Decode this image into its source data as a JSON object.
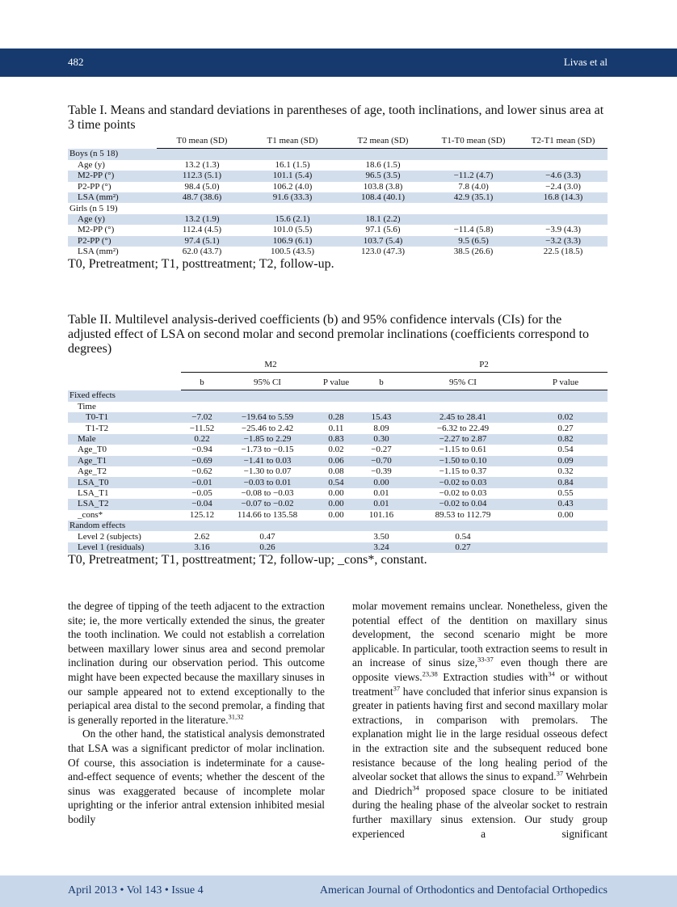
{
  "header": {
    "page": "482",
    "running_title": "Livas et al"
  },
  "table1": {
    "label": "Table I.",
    "caption": "Means and standard deviations in parentheses of age, tooth inclinations, and lower sinus area at 3 time points",
    "columns": [
      "T0 mean (SD)",
      "T1 mean (SD)",
      "T2 mean (SD)",
      "T1-T0 mean (SD)",
      "T2-T1 mean (SD)"
    ],
    "rows": [
      {
        "label": "Boys (n 5 18)",
        "rows": [
          {
            "label": "Age (y)",
            "cells": [
              "13.2 (1.3)",
              "16.1 (1.5)",
              "18.6 (1.5)",
              null,
              null
            ]
          },
          {
            "label": "M2-PP (°)",
            "cells": [
              "112.3 (5.1)",
              "101.1 (5.4)",
              "96.5 (3.5)",
              "−11.2 (4.7)",
              "−4.6 (3.3)"
            ]
          },
          {
            "label": "P2-PP (°)",
            "cells": [
              "98.4 (5.0)",
              "106.2 (4.0)",
              "103.8 (3.8)",
              "7.8 (4.0)",
              "−2.4 (3.0)"
            ]
          },
          {
            "label": "LSA (mm²)",
            "cells": [
              "48.7 (38.6)",
              "91.6 (33.3)",
              "108.4 (40.1)",
              "42.9 (35.1)",
              "16.8 (14.3)"
            ]
          }
        ]
      },
      {
        "label": "Girls (n 5 19)",
        "rows": [
          {
            "label": "Age (y)",
            "cells": [
              "13.2 (1.9)",
              "15.6 (2.1)",
              "18.1 (2.2)",
              null,
              null
            ]
          },
          {
            "label": "M2-PP (°)",
            "cells": [
              "112.4 (4.5)",
              "101.0 (5.5)",
              "97.1 (5.6)",
              "−11.4 (5.8)",
              "−3.9 (4.3)"
            ]
          },
          {
            "label": "P2-PP (°)",
            "cells": [
              "97.4 (5.1)",
              "106.9 (6.1)",
              "103.7 (5.4)",
              "9.5 (6.5)",
              "−3.2 (3.3)"
            ]
          },
          {
            "label": "LSA (mm²)",
            "cells": [
              "62.0 (43.7)",
              "100.5 (43.5)",
              "123.0 (47.3)",
              "38.5 (26.6)",
              "22.5 (18.5)"
            ]
          }
        ]
      }
    ],
    "footnote": "T0, Pretreatment; T1, posttreatment; T2, follow-up."
  },
  "table2": {
    "label": "Table II.",
    "caption": "Multilevel analysis-derived coefficients (b) and 95% confidence intervals (CIs) for the adjusted effect of LSA on second molar and second premolar inclinations (coefficients correspond to degrees)",
    "groups": [
      "M2",
      "P2"
    ],
    "columns": [
      "b",
      "95% CI",
      "P value",
      "b",
      "95% CI",
      "P value"
    ],
    "rows": [
      {
        "label": "Fixed effects",
        "rows": [
          {
            "label": "Time",
            "rows": [
              {
                "label": "T0-T1",
                "cells": [
                  "−7.02",
                  "−19.64 to 5.59",
                  "0.28",
                  "15.43",
                  "2.45 to 28.41",
                  "0.02"
                ]
              },
              {
                "label": "T1-T2",
                "cells": [
                  "−11.52",
                  "−25.46 to 2.42",
                  "0.11",
                  "8.09",
                  "−6.32 to 22.49",
                  "0.27"
                ]
              }
            ]
          },
          {
            "label": "Male",
            "cells": [
              "0.22",
              "−1.85 to 2.29",
              "0.83",
              "0.30",
              "−2.27 to 2.87",
              "0.82"
            ]
          },
          {
            "label": "Age_T0",
            "cells": [
              "−0.94",
              "−1.73 to −0.15",
              "0.02",
              "−0.27",
              "−1.15 to 0.61",
              "0.54"
            ]
          },
          {
            "label": "Age_T1",
            "cells": [
              "−0.69",
              "−1.41 to 0.03",
              "0.06",
              "−0.70",
              "−1.50 to 0.10",
              "0.09"
            ]
          },
          {
            "label": "Age_T2",
            "cells": [
              "−0.62",
              "−1.30 to 0.07",
              "0.08",
              "−0.39",
              "−1.15 to 0.37",
              "0.32"
            ]
          },
          {
            "label": "LSA_T0",
            "cells": [
              "−0.01",
              "−0.03 to 0.01",
              "0.54",
              "0.00",
              "−0.02 to 0.03",
              "0.84"
            ]
          },
          {
            "label": "LSA_T1",
            "cells": [
              "−0.05",
              "−0.08 to −0.03",
              "0.00",
              "0.01",
              "−0.02 to 0.03",
              "0.55"
            ]
          },
          {
            "label": "LSA_T2",
            "cells": [
              "−0.04",
              "−0.07 to −0.02",
              "0.00",
              "0.01",
              "−0.02 to 0.04",
              "0.43"
            ]
          },
          {
            "label": "_cons*",
            "cells": [
              "125.12",
              "114.66 to 135.58",
              "0.00",
              "101.16",
              "89.53 to 112.79",
              "0.00"
            ]
          }
        ]
      },
      {
        "label": "Random effects",
        "rows": [
          {
            "label": "Level 2 (subjects)",
            "cells": [
              "2.62",
              "0.47",
              null,
              "3.50",
              "0.54",
              null
            ]
          },
          {
            "label": "Level 1 (residuals)",
            "cells": [
              "3.16",
              "0.26",
              null,
              "3.24",
              "0.27",
              null
            ]
          }
        ]
      }
    ],
    "footnote": "T0, Pretreatment; T1, posttreatment; T2, follow-up; _cons*, constant."
  },
  "body": {
    "columns": [
      [
        [
          "the degree of tipping of the teeth adjacent to the extraction site; ie, the more vertically extended the sinus, the greater the tooth inclination. We could not establish a correlation between maxillary lower sinus area and second premolar inclination during our observation period. This outcome might have been expected because the maxillary sinuses in our sample appeared not to extend exceptionally to the periapical area distal to the second premolar, a finding that is generally reported in the literature.",
          {
            "sup": "31,32"
          }
        ],
        [
          "On the other hand, the statistical analysis demonstrated that LSA was a significant predictor of molar inclination. Of course, this association is indeterminate for a cause-and-effect sequence of events; whether the descent of the sinus was exaggerated because of incomplete molar uprighting or the inferior antral extension inhibited mesial bodily"
        ]
      ],
      [
        [
          "molar movement remains unclear. Nonetheless, given the potential effect of the dentition on maxillary sinus development, the second scenario might be more applicable. In particular, tooth extraction seems to result in an increase of sinus size,",
          {
            "sup": "33-37"
          },
          " even though there are opposite views.",
          {
            "sup": "23,38"
          },
          " Extraction studies with",
          {
            "sup": "34"
          },
          " or without treatment",
          {
            "sup": "37"
          },
          " have concluded that inferior sinus expansion is greater in patients having first and second maxillary molar extractions, in comparison with premolars. The explanation might lie in the large residual osseous defect in the extraction site and the subsequent reduced bone resistance because of the long healing period of the alveolar socket that allows the sinus to expand.",
          {
            "sup": "37"
          },
          " Wehrbein and Diedrich",
          {
            "sup": "34"
          },
          " proposed space closure to be initiated during the healing phase of the alveolar socket to restrain further maxillary sinus extension. Our study group experienced a significant"
        ]
      ]
    ]
  },
  "footer": {
    "issue": "April 2013 • Vol 143 • Issue 4",
    "journal": "American Journal of Orthodontics and Dentofacial Orthopedics"
  }
}
